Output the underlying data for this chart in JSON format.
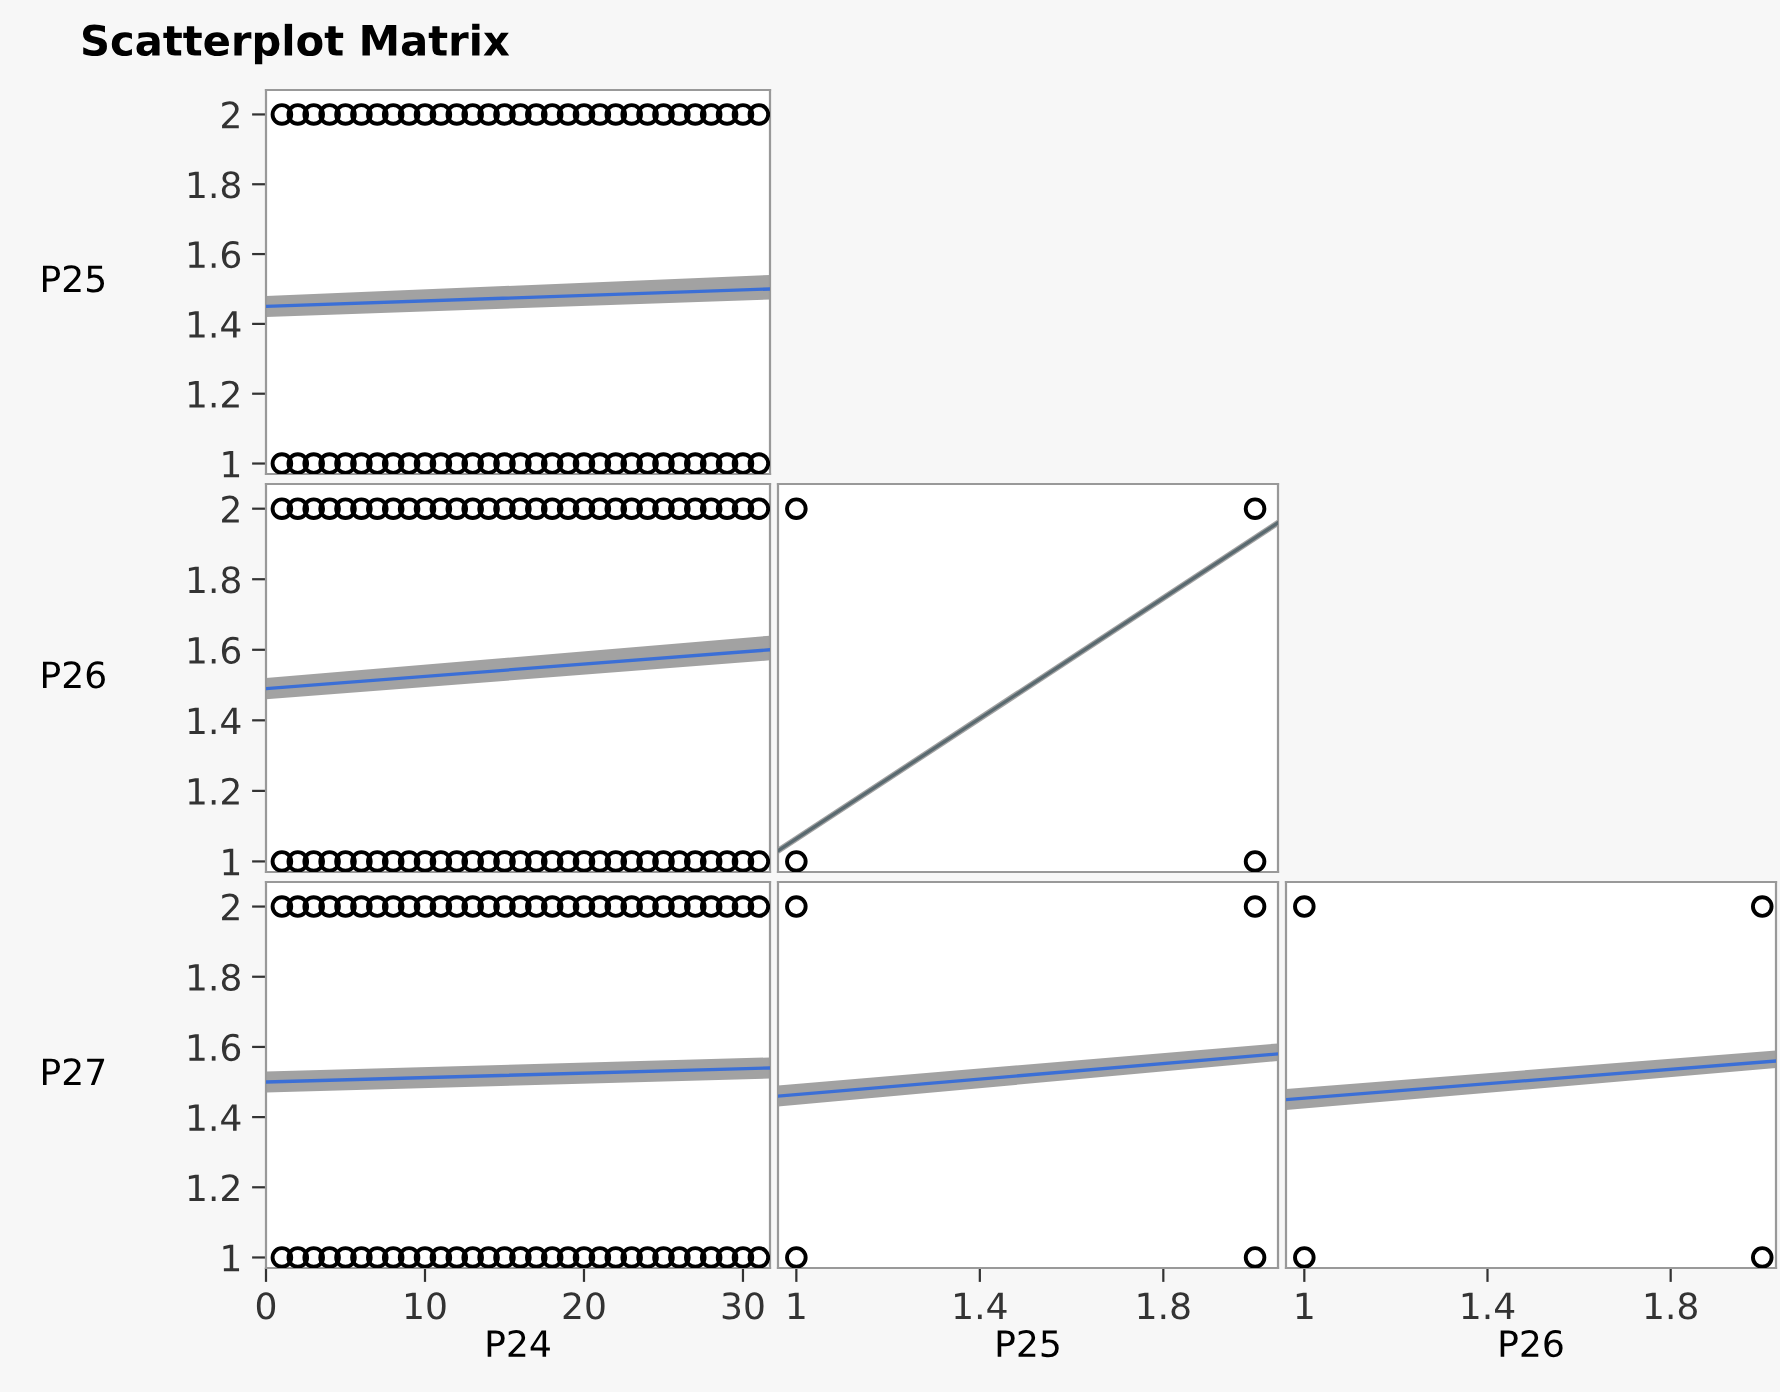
{
  "chart_data": [
    {
      "type": "scatter",
      "title": "Scatterplot Matrix",
      "ylabel": "P25",
      "xlim": [
        0,
        31.7
      ],
      "ylim": [
        0.97,
        2.07
      ],
      "yticks": [
        1,
        1.2,
        1.4,
        1.6,
        1.8,
        2
      ],
      "tick_labels": "y",
      "grid": false,
      "legend": false,
      "series": [
        {
          "type": "scatter",
          "marker": "circle",
          "color": "#000000",
          "x": [
            1,
            2,
            3,
            4,
            5,
            6,
            7,
            8,
            9,
            10,
            11,
            12,
            13,
            14,
            15,
            16,
            17,
            18,
            19,
            20,
            21,
            22,
            23,
            24,
            25,
            26,
            27,
            28,
            29,
            30,
            31,
            1,
            2,
            3,
            4,
            5,
            6,
            7,
            8,
            9,
            10,
            11,
            12,
            13,
            14,
            15,
            16,
            17,
            18,
            19,
            20,
            21,
            22,
            23,
            24,
            25,
            26,
            27,
            28,
            29,
            30,
            31
          ],
          "values": [
            2,
            2,
            2,
            2,
            2,
            2,
            2,
            2,
            2,
            2,
            2,
            2,
            2,
            2,
            2,
            2,
            2,
            2,
            2,
            2,
            2,
            2,
            2,
            2,
            2,
            2,
            2,
            2,
            2,
            2,
            2,
            1,
            1,
            1,
            1,
            1,
            1,
            1,
            1,
            1,
            1,
            1,
            1,
            1,
            1,
            1,
            1,
            1,
            1,
            1,
            1,
            1,
            1,
            1,
            1,
            1,
            1,
            1,
            1,
            1,
            1,
            1
          ]
        },
        {
          "type": "line",
          "marker": "none",
          "color": "#3b6fd6",
          "x": [
            0,
            31.7
          ],
          "values": [
            1.45,
            1.5
          ],
          "lower": [
            1.42,
            1.47
          ],
          "upper": [
            1.48,
            1.54
          ]
        }
      ]
    },
    {
      "type": "scatter",
      "ylabel": "P26",
      "xlim": [
        0,
        31.7
      ],
      "ylim": [
        0.97,
        2.07
      ],
      "yticks": [
        1,
        1.2,
        1.4,
        1.6,
        1.8,
        2
      ],
      "tick_labels": "y",
      "grid": false,
      "legend": false,
      "series": [
        {
          "type": "scatter",
          "marker": "circle",
          "color": "#000000",
          "x": [
            1,
            2,
            3,
            4,
            5,
            6,
            7,
            8,
            9,
            10,
            11,
            12,
            13,
            14,
            15,
            16,
            17,
            18,
            19,
            20,
            21,
            22,
            23,
            24,
            25,
            26,
            27,
            28,
            29,
            30,
            31,
            1,
            2,
            3,
            4,
            5,
            6,
            7,
            8,
            9,
            10,
            11,
            12,
            13,
            14,
            15,
            16,
            17,
            18,
            19,
            20,
            21,
            22,
            23,
            24,
            25,
            26,
            27,
            28,
            29,
            30,
            31
          ],
          "values": [
            2,
            2,
            2,
            2,
            2,
            2,
            2,
            2,
            2,
            2,
            2,
            2,
            2,
            2,
            2,
            2,
            2,
            2,
            2,
            2,
            2,
            2,
            2,
            2,
            2,
            2,
            2,
            2,
            2,
            2,
            2,
            1,
            1,
            1,
            1,
            1,
            1,
            1,
            1,
            1,
            1,
            1,
            1,
            1,
            1,
            1,
            1,
            1,
            1,
            1,
            1,
            1,
            1,
            1,
            1,
            1,
            1,
            1,
            1,
            1,
            1,
            1
          ]
        },
        {
          "type": "line",
          "marker": "none",
          "color": "#3b6fd6",
          "x": [
            0,
            31.7
          ],
          "values": [
            1.49,
            1.6
          ],
          "lower": [
            1.46,
            1.57
          ],
          "upper": [
            1.52,
            1.64
          ]
        }
      ]
    },
    {
      "type": "scatter",
      "ylabel": "P27",
      "xlabel": "P24",
      "xlim": [
        0,
        31.7
      ],
      "ylim": [
        0.97,
        2.07
      ],
      "xticks": [
        0,
        10,
        20,
        30
      ],
      "yticks": [
        1,
        1.2,
        1.4,
        1.6,
        1.8,
        2
      ],
      "grid": false,
      "legend": false,
      "series": [
        {
          "type": "scatter",
          "marker": "circle",
          "color": "#000000",
          "x": [
            1,
            2,
            3,
            4,
            5,
            6,
            7,
            8,
            9,
            10,
            11,
            12,
            13,
            14,
            15,
            16,
            17,
            18,
            19,
            20,
            21,
            22,
            23,
            24,
            25,
            26,
            27,
            28,
            29,
            30,
            31,
            1,
            2,
            3,
            4,
            5,
            6,
            7,
            8,
            9,
            10,
            11,
            12,
            13,
            14,
            15,
            16,
            17,
            18,
            19,
            20,
            21,
            22,
            23,
            24,
            25,
            26,
            27,
            28,
            29,
            30,
            31
          ],
          "values": [
            2,
            2,
            2,
            2,
            2,
            2,
            2,
            2,
            2,
            2,
            2,
            2,
            2,
            2,
            2,
            2,
            2,
            2,
            2,
            2,
            2,
            2,
            2,
            2,
            2,
            2,
            2,
            2,
            2,
            2,
            2,
            1,
            1,
            1,
            1,
            1,
            1,
            1,
            1,
            1,
            1,
            1,
            1,
            1,
            1,
            1,
            1,
            1,
            1,
            1,
            1,
            1,
            1,
            1,
            1,
            1,
            1,
            1,
            1,
            1,
            1,
            1
          ]
        },
        {
          "type": "line",
          "marker": "none",
          "color": "#3b6fd6",
          "x": [
            0,
            31.7
          ],
          "values": [
            1.5,
            1.54
          ],
          "lower": [
            1.47,
            1.51
          ],
          "upper": [
            1.53,
            1.57
          ]
        }
      ]
    },
    {
      "type": "scatter",
      "xlim": [
        0.96,
        2.05
      ],
      "ylim": [
        0.97,
        2.07
      ],
      "tick_labels": false,
      "grid": false,
      "legend": false,
      "series": [
        {
          "type": "scatter",
          "marker": "circle",
          "color": "#000000",
          "x": [
            1,
            1,
            2,
            2
          ],
          "values": [
            1,
            2,
            1,
            2
          ]
        },
        {
          "type": "line",
          "marker": "none",
          "color": "#5a6a70",
          "x": [
            0.96,
            2.05
          ],
          "values": [
            1.03,
            1.96
          ],
          "lower": [
            1.02,
            1.95
          ],
          "upper": [
            1.04,
            1.97
          ]
        }
      ]
    },
    {
      "type": "scatter",
      "xlabel": "P25",
      "xlim": [
        0.96,
        2.05
      ],
      "ylim": [
        0.97,
        2.07
      ],
      "xticks": [
        1,
        1.4,
        1.8
      ],
      "tick_labels": "x",
      "grid": false,
      "legend": false,
      "series": [
        {
          "type": "scatter",
          "marker": "circle",
          "color": "#000000",
          "x": [
            1,
            1,
            2,
            2
          ],
          "values": [
            1,
            2,
            1,
            2
          ]
        },
        {
          "type": "line",
          "marker": "none",
          "color": "#3b6fd6",
          "x": [
            0.96,
            2.05
          ],
          "values": [
            1.46,
            1.58
          ],
          "lower": [
            1.43,
            1.56
          ],
          "upper": [
            1.49,
            1.61
          ]
        }
      ]
    },
    {
      "type": "scatter",
      "xlabel": "P26",
      "xlim": [
        0.96,
        2.03
      ],
      "ylim": [
        0.97,
        2.07
      ],
      "xticks": [
        1,
        1.4,
        1.8
      ],
      "tick_labels": "x",
      "grid": false,
      "legend": false,
      "series": [
        {
          "type": "scatter",
          "marker": "circle",
          "color": "#000000",
          "x": [
            1,
            1,
            2,
            2
          ],
          "values": [
            1,
            2,
            1,
            2
          ]
        },
        {
          "type": "line",
          "marker": "none",
          "color": "#3b6fd6",
          "x": [
            0.96,
            2.03
          ],
          "values": [
            1.45,
            1.56
          ],
          "lower": [
            1.42,
            1.54
          ],
          "upper": [
            1.48,
            1.59
          ]
        }
      ]
    }
  ]
}
